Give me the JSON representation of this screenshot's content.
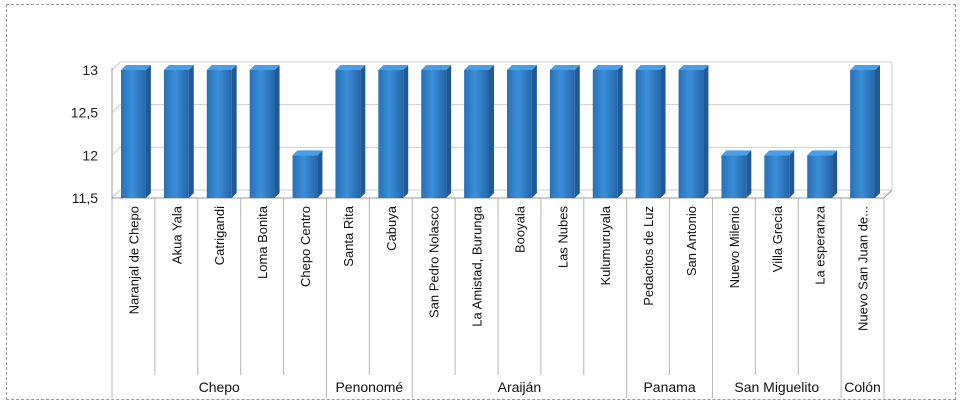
{
  "chart_data": {
    "type": "bar",
    "title": "",
    "xlabel": "",
    "ylabel": "",
    "ylim": [
      11.5,
      13
    ],
    "yticks": [
      "13",
      "12,5",
      "12",
      "11,5"
    ],
    "ytick_values": [
      13,
      12.5,
      12,
      11.5
    ],
    "grid": true,
    "bar_color": "#2e7cc4",
    "categories": [
      "Naranjal de Chepo",
      "Akua Yala",
      "Catrigandi",
      "Loma Bonita",
      "Chepo Centro",
      "Santa Rita",
      "Cabuya",
      "San Pedro Nolasco",
      "La Amistad, Burunga",
      "Booyala",
      "Las Nubes",
      "Kulumuruyala",
      "Pedacitos de Luz",
      "San Antonio",
      "Nuevo Milenio",
      "Villa Grecia",
      "La esperanza",
      "Nuevo San Juan de..."
    ],
    "values": [
      13,
      13,
      13,
      13,
      12,
      13,
      13,
      13,
      13,
      13,
      13,
      13,
      13,
      13,
      12,
      12,
      12,
      13
    ],
    "groups": [
      {
        "label": "Chepo",
        "count": 5
      },
      {
        "label": "Penonomé",
        "count": 2
      },
      {
        "label": "Araiján",
        "count": 5
      },
      {
        "label": "Panama",
        "count": 2
      },
      {
        "label": "San Miguelito",
        "count": 3
      },
      {
        "label": "Colón",
        "count": 1
      }
    ]
  }
}
